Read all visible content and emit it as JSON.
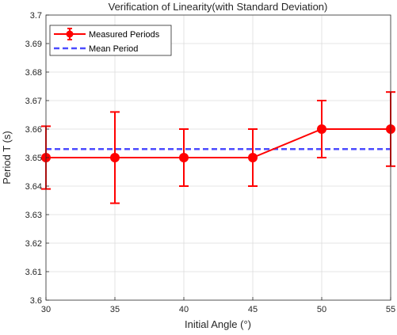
{
  "chart_data": {
    "type": "line",
    "title": "Verification of Linearity(with Standard Deviation)",
    "xlabel": "Initial Angle (°)",
    "ylabel": "Period T (s)",
    "xlim": [
      30,
      55
    ],
    "ylim": [
      3.6,
      3.7
    ],
    "grid": true,
    "legend_placement": "top-left",
    "x_ticks": [
      "30",
      "35",
      "40",
      "45",
      "50",
      "55"
    ],
    "y_ticks": [
      "3.6",
      "3.61",
      "3.62",
      "3.63",
      "3.64",
      "3.65",
      "3.66",
      "3.67",
      "3.68",
      "3.69",
      "3.7"
    ],
    "series": [
      {
        "name": "Measured Periods",
        "color": "#ff0000",
        "marker": "circle",
        "x": [
          30,
          35,
          40,
          45,
          50,
          55
        ],
        "y": [
          3.65,
          3.65,
          3.65,
          3.65,
          3.66,
          3.66
        ],
        "error_lower": [
          3.639,
          3.634,
          3.64,
          3.64,
          3.65,
          3.647
        ],
        "error_upper": [
          3.661,
          3.666,
          3.66,
          3.66,
          3.67,
          3.673
        ]
      },
      {
        "name": "Mean Period",
        "color": "#4b4bff",
        "style": "dashed",
        "y": 3.653
      }
    ]
  }
}
